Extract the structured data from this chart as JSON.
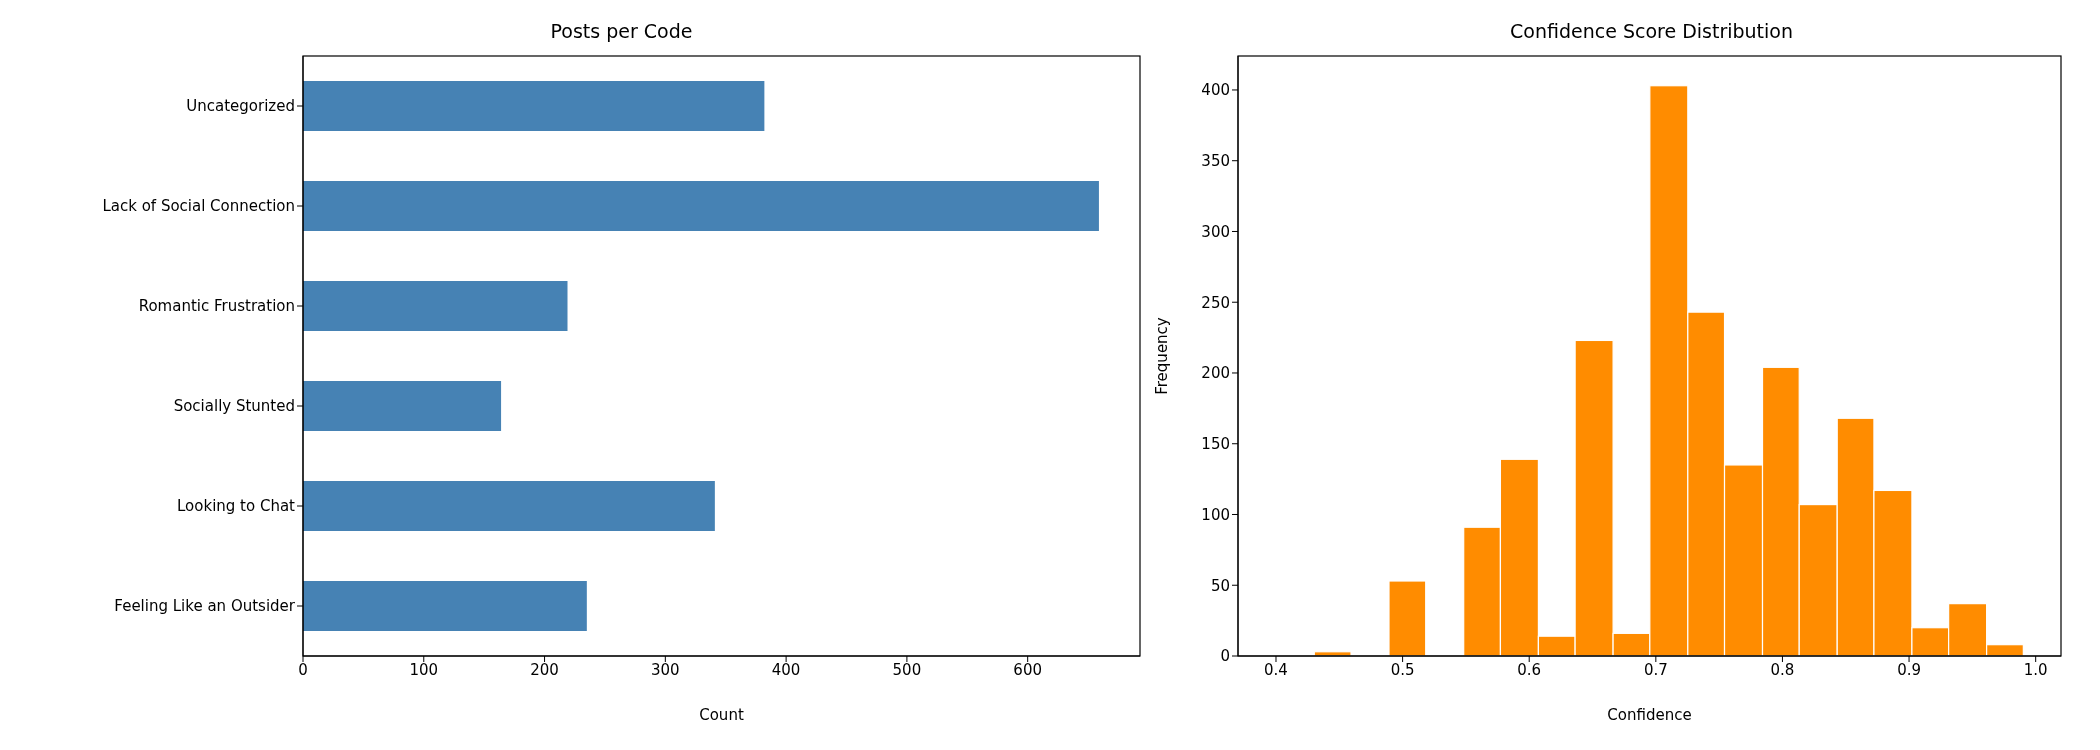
{
  "chart_data": [
    {
      "type": "bar",
      "orientation": "horizontal",
      "title": "Posts per Code",
      "xlabel": "Count",
      "categories": [
        "Uncategorized",
        "Lack of Social Connection",
        "Romantic Frustration",
        "Socially Stunted",
        "Looking to Chat",
        "Feeling Like an Outsider"
      ],
      "values": [
        382,
        659,
        219,
        164,
        341,
        235
      ],
      "color": "#4682b4",
      "xlim": [
        0,
        693
      ],
      "xticks": [
        0,
        100,
        200,
        300,
        400,
        500,
        600
      ]
    },
    {
      "type": "histogram",
      "title": "Confidence Score Distribution",
      "xlabel": "Confidence",
      "ylabel": "Frequency",
      "bins": [
        0.43,
        0.459,
        0.489,
        0.518,
        0.548,
        0.577,
        0.607,
        0.636,
        0.666,
        0.695,
        0.725,
        0.754,
        0.784,
        0.813,
        0.843,
        0.872,
        0.902,
        0.931,
        0.961,
        0.99
      ],
      "values": [
        3,
        0,
        53,
        0,
        91,
        139,
        14,
        223,
        16,
        403,
        243,
        135,
        204,
        107,
        168,
        117,
        20,
        37,
        8
      ],
      "color": "#ff8c00",
      "xlim": [
        0.37,
        1.02
      ],
      "xticks": [
        0.4,
        0.5,
        0.6,
        0.7,
        0.8,
        0.9,
        {
          "value": 1,
          "label": "1.0"
        }
      ],
      "ylim": [
        0,
        424
      ],
      "yticks": [
        0,
        50,
        100,
        150,
        200,
        250,
        300,
        350,
        400
      ]
    }
  ]
}
